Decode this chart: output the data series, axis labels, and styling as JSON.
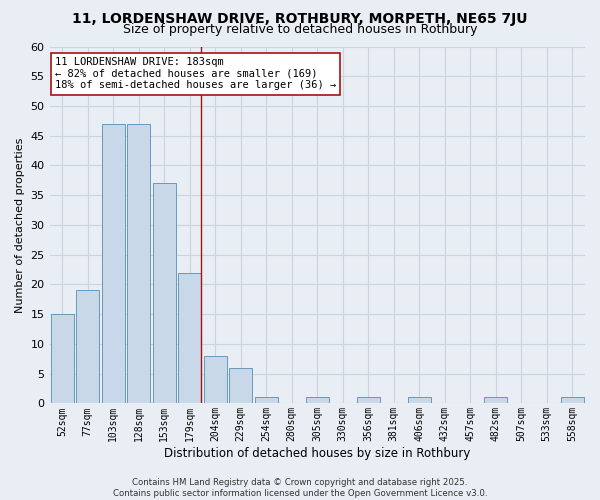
{
  "title": "11, LORDENSHAW DRIVE, ROTHBURY, MORPETH, NE65 7JU",
  "subtitle": "Size of property relative to detached houses in Rothbury",
  "xlabel": "Distribution of detached houses by size in Rothbury",
  "ylabel": "Number of detached properties",
  "bin_labels": [
    "52sqm",
    "77sqm",
    "103sqm",
    "128sqm",
    "153sqm",
    "179sqm",
    "204sqm",
    "229sqm",
    "254sqm",
    "280sqm",
    "305sqm",
    "330sqm",
    "356sqm",
    "381sqm",
    "406sqm",
    "432sqm",
    "457sqm",
    "482sqm",
    "507sqm",
    "533sqm",
    "558sqm"
  ],
  "bar_values": [
    15,
    19,
    47,
    47,
    37,
    22,
    8,
    6,
    1,
    0,
    1,
    0,
    1,
    0,
    1,
    0,
    0,
    1,
    0,
    0,
    1
  ],
  "bar_color": "#c8d8e8",
  "bar_edge_color": "#6699bb",
  "ylim": [
    0,
    60
  ],
  "yticks": [
    0,
    5,
    10,
    15,
    20,
    25,
    30,
    35,
    40,
    45,
    50,
    55,
    60
  ],
  "vline_bin_index": 5,
  "vline_color": "#aa1111",
  "annotation_title": "11 LORDENSHAW DRIVE: 183sqm",
  "annotation_line1": "← 82% of detached houses are smaller (169)",
  "annotation_line2": "18% of semi-detached houses are larger (36) →",
  "annotation_box_facecolor": "#ffffff",
  "annotation_box_edgecolor": "#aa1111",
  "footer_line1": "Contains HM Land Registry data © Crown copyright and database right 2025.",
  "footer_line2": "Contains public sector information licensed under the Open Government Licence v3.0.",
  "bg_color": "#e8eef4",
  "plot_bg_color": "#e8eef4",
  "grid_color": "#c8d4de",
  "title_fontsize": 10,
  "subtitle_fontsize": 9
}
